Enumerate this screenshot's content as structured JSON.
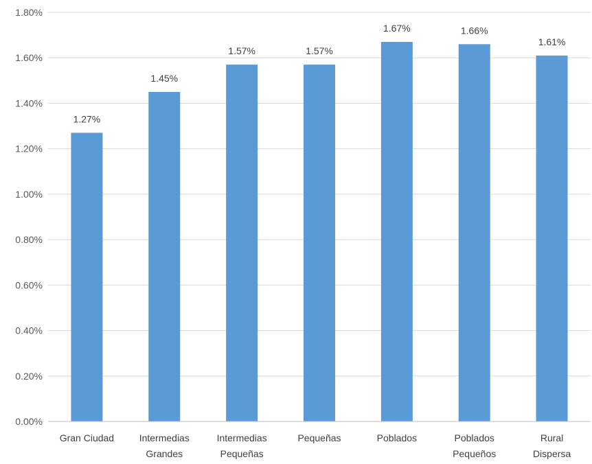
{
  "chart_data": {
    "type": "bar",
    "categories": [
      [
        "Gran Ciudad"
      ],
      [
        "Intermedias",
        "Grandes"
      ],
      [
        "Intermedias",
        "Pequeñas"
      ],
      [
        "Pequeñas"
      ],
      [
        "Poblados"
      ],
      [
        "Poblados",
        "Pequeños"
      ],
      [
        "Rural",
        "Dispersa"
      ]
    ],
    "values": [
      1.27,
      1.45,
      1.57,
      1.57,
      1.67,
      1.66,
      1.61
    ],
    "value_labels": [
      "1.27%",
      "1.45%",
      "1.57%",
      "1.57%",
      "1.67%",
      "1.66%",
      "1.61%"
    ],
    "y_ticks": [
      "0.00%",
      "0.20%",
      "0.40%",
      "0.60%",
      "0.80%",
      "1.00%",
      "1.20%",
      "1.40%",
      "1.60%",
      "1.80%"
    ],
    "ylim": [
      0,
      1.8
    ],
    "y_unit": "%",
    "grid": true,
    "legend": "none",
    "bar_color": "#5b9bd5"
  }
}
